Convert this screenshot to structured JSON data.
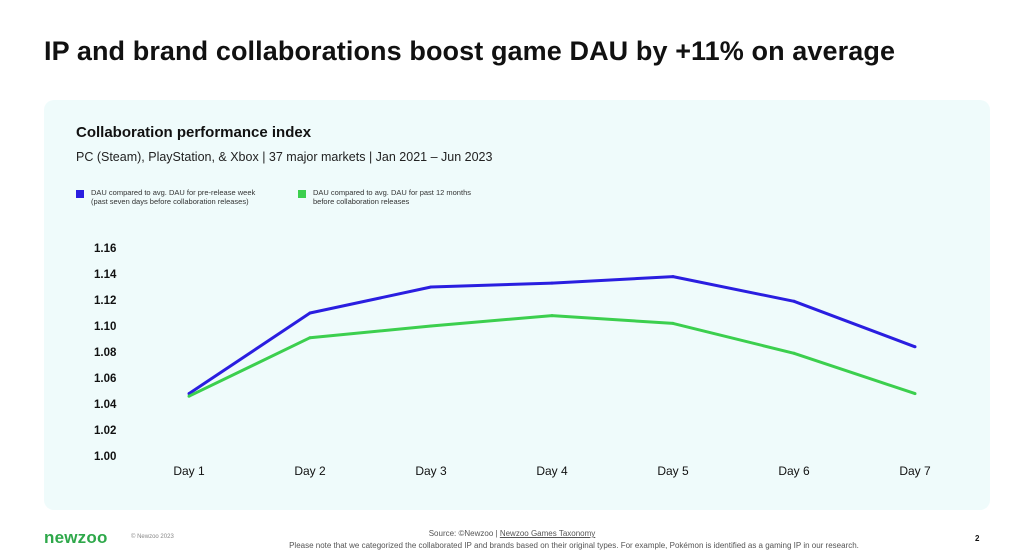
{
  "headline": "IP and brand collaborations boost game DAU by +11% on average",
  "brand": {
    "logo": "newzoo",
    "copyright": "© Newzoo 2023"
  },
  "footer": {
    "source_prefix": "Source: ©Newzoo | ",
    "source_link": "Newzoo Games Taxonomy",
    "note": "Please note that we categorized the collaborated IP and brands based on their original types. For example, Pokémon is identified as a gaming IP in our research.",
    "page_number": "2"
  },
  "colors": {
    "series_1": "#2a1ee0",
    "series_2": "#3ccf4e",
    "panel": "#effbfb",
    "logo": "#2ea84a"
  },
  "chart_data": {
    "type": "line",
    "title": "Collaboration performance index",
    "subtitle": "PC (Steam), PlayStation, & Xbox | 37 major markets | Jan 2021 – Jun 2023",
    "categories": [
      "Day 1",
      "Day 2",
      "Day 3",
      "Day 4",
      "Day 5",
      "Day 6",
      "Day 7"
    ],
    "series": [
      {
        "name": "DAU compared to avg. DAU for pre-release week\n(past seven days before collaboration releases)",
        "color": "#2a1ee0",
        "values": [
          1.048,
          1.11,
          1.13,
          1.133,
          1.138,
          1.119,
          1.084
        ]
      },
      {
        "name": "DAU compared to avg. DAU for past 12 months\nbefore collaboration releases",
        "color": "#3ccf4e",
        "values": [
          1.046,
          1.091,
          1.1,
          1.108,
          1.102,
          1.079,
          1.048
        ]
      }
    ],
    "yticks": [
      "1.16",
      "1.14",
      "1.12",
      "1.10",
      "1.08",
      "1.06",
      "1.04",
      "1.02",
      "1.00"
    ],
    "ylim": [
      1.0,
      1.16
    ],
    "grid": false,
    "legend": "top-left"
  }
}
